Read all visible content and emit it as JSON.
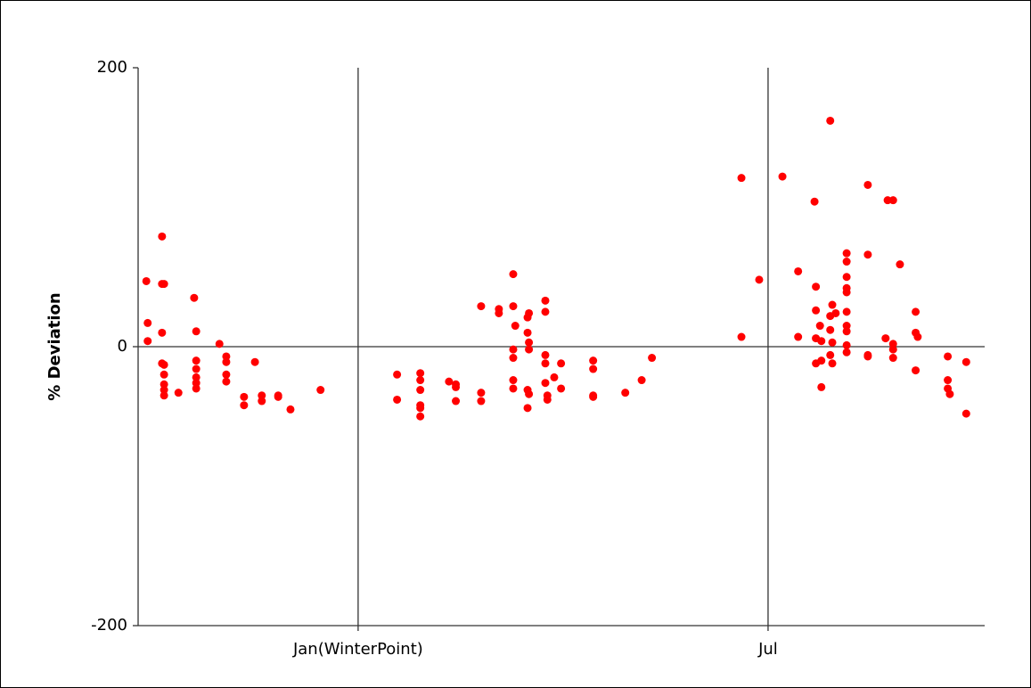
{
  "chart_data": {
    "type": "scatter",
    "ylabel": "% Deviation",
    "series": [
      {
        "color": "#ff0000",
        "x": [
          -3.1,
          -3.08,
          -3.08,
          -2.87,
          -2.87,
          -2.84,
          -2.87,
          -2.87,
          -2.84,
          -2.84,
          -2.84,
          -2.84,
          -2.84,
          -2.63,
          -2.4,
          -2.37,
          -2.37,
          -2.37,
          -2.37,
          -2.37,
          -2.37,
          -2.03,
          -1.93,
          -1.93,
          -1.93,
          -1.93,
          -1.67,
          -1.67,
          -1.51,
          -1.41,
          -1.41,
          -1.17,
          -1.17,
          -0.99,
          -0.55,
          0.57,
          0.57,
          0.91,
          0.91,
          0.91,
          0.91,
          0.91,
          0.91,
          1.33,
          1.43,
          1.43,
          1.43,
          1.8,
          1.8,
          1.8,
          2.06,
          2.06,
          2.27,
          2.27,
          2.3,
          2.27,
          2.27,
          2.27,
          2.27,
          2.48,
          2.5,
          2.48,
          2.5,
          2.5,
          2.48,
          2.5,
          2.48,
          2.74,
          2.74,
          2.74,
          2.74,
          2.74,
          2.77,
          2.77,
          2.87,
          2.97,
          2.97,
          3.44,
          3.44,
          3.44,
          3.44,
          3.91,
          4.15,
          4.3,
          5.61,
          5.61,
          5.87,
          6.21,
          6.44,
          6.44,
          6.68,
          6.7,
          6.7,
          6.7,
          6.7,
          6.76,
          6.78,
          6.78,
          6.78,
          6.91,
          6.91,
          6.91,
          6.94,
          6.94,
          6.91,
          6.94,
          6.99,
          7.15,
          7.15,
          7.15,
          7.15,
          7.15,
          7.15,
          7.15,
          7.15,
          7.15,
          7.15,
          7.46,
          7.46,
          7.46,
          7.46,
          7.72,
          7.75,
          7.83,
          7.83,
          7.83,
          7.83,
          7.93,
          8.16,
          8.16,
          8.19,
          8.16,
          8.63,
          8.63,
          8.63,
          8.66,
          8.9,
          8.9
        ],
        "values": [
          47,
          17,
          4,
          79,
          45,
          45,
          10,
          -12,
          -13,
          -20,
          -27,
          -31,
          -35,
          -33,
          35,
          11,
          -10,
          -16,
          -22,
          -26,
          -30,
          2,
          -7,
          -11,
          -20,
          -25,
          -36,
          -42,
          -11,
          -35,
          -39,
          -35,
          -36,
          -45,
          -31,
          -20,
          -38,
          -19,
          -24,
          -31,
          -42,
          -44,
          -50,
          -25,
          -27,
          -29,
          -39,
          29,
          -33,
          -39,
          27,
          24,
          52,
          29,
          15,
          -2,
          -8,
          -24,
          -30,
          21,
          24,
          10,
          3,
          -2,
          -31,
          -34,
          -44,
          33,
          25,
          -6,
          -12,
          -26,
          -35,
          -38,
          -22,
          -12,
          -30,
          -10,
          -16,
          -35,
          -36,
          -33,
          -24,
          -8,
          121,
          7,
          48,
          122,
          7,
          54,
          104,
          43,
          26,
          6,
          -12,
          15,
          4,
          -10,
          -29,
          162,
          22,
          12,
          30,
          3,
          -6,
          -12,
          24,
          67,
          61,
          50,
          42,
          39,
          25,
          15,
          11,
          1,
          -4,
          116,
          66,
          -6,
          -7,
          6,
          105,
          105,
          2,
          -2,
          -8,
          59,
          25,
          10,
          7,
          -17,
          -7,
          -24,
          -30,
          -34,
          -11,
          -48
        ]
      }
    ],
    "xlim": [
      -3.22,
      9.17
    ],
    "xticks": [
      {
        "value": 0,
        "label": "Jan(WinterPoint)"
      },
      {
        "value": 6,
        "label": "Jul"
      }
    ],
    "ylim": [
      -200,
      200
    ],
    "yticks": [
      -200,
      0,
      200
    ],
    "grid": true
  }
}
